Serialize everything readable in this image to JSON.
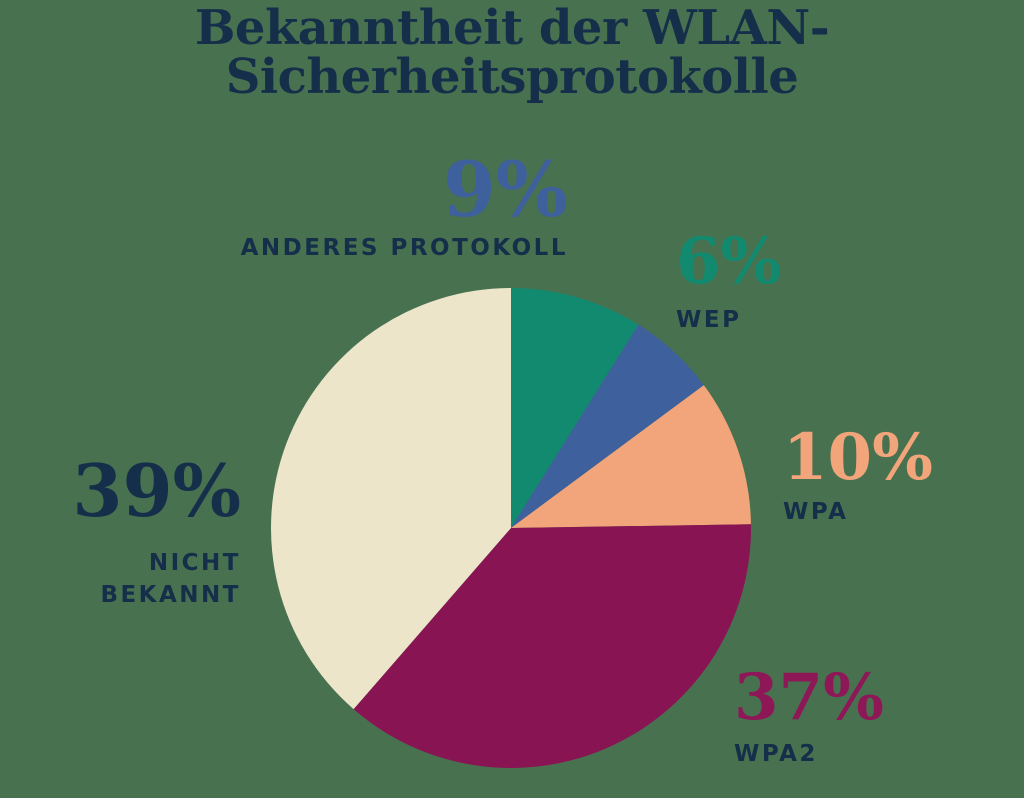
{
  "background_color": "#48714f",
  "title": "Bekanntheit der WLAN-Sicherheitsprotokolle",
  "title_color": "#152f4b",
  "chart_data": {
    "type": "pie",
    "title": "Bekanntheit der WLAN-Sicherheitsprotokolle",
    "unit": "percent",
    "start_angle_deg": 0,
    "direction": "clockwise",
    "legend_position": "callout-labels-around-pie",
    "label_text_color": "#152f4b",
    "segments": [
      {
        "label": "ANDERES PROTOKOLL",
        "value": 9,
        "display": "9%",
        "slice_color": "#128a6f",
        "number_color": "#3e609c"
      },
      {
        "label": "WEP",
        "value": 6,
        "display": "6%",
        "slice_color": "#3e609c",
        "number_color": "#128a6f"
      },
      {
        "label": "WPA",
        "value": 10,
        "display": "10%",
        "slice_color": "#f2a57b",
        "number_color": "#f2a57b"
      },
      {
        "label": "WPA2",
        "value": 37,
        "display": "37%",
        "slice_color": "#891454",
        "number_color": "#8e1757"
      },
      {
        "label": "NICHT BEKANNT",
        "value": 39,
        "display": "39%",
        "slice_color": "#ece5ca",
        "number_color": "#152f4b"
      }
    ]
  }
}
